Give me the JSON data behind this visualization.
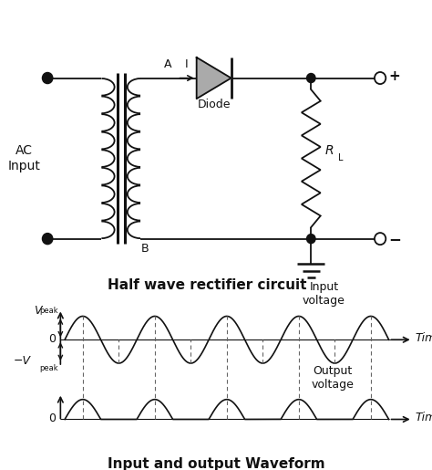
{
  "title_circuit": "Half wave rectifier circuit",
  "title_waveform": "Input and output Waveform",
  "label_ac": "AC\nInput",
  "label_diode": "Diode",
  "label_rl": "R",
  "label_rl_sub": "L",
  "label_A": "A",
  "label_B": "B",
  "label_I": "I",
  "label_plus": "+",
  "label_minus": "−",
  "label_time_top": "Time",
  "label_time_bot": "Time",
  "label_input_voltage": "Input\nvoltage",
  "label_output_voltage": "Output\nvoltage",
  "line_color": "#111111",
  "dashed_color": "#666666",
  "n_cycles": 4.5,
  "bg_color": "#ffffff"
}
